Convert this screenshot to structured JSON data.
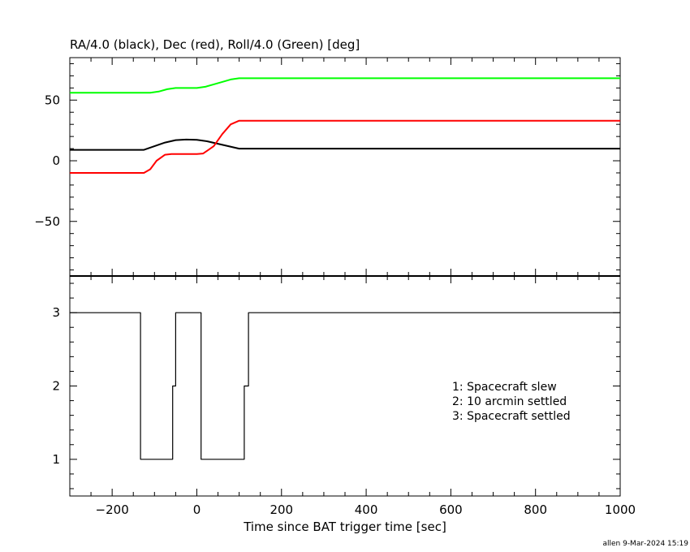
{
  "chart_data": [
    {
      "type": "line",
      "title": "RA/4.0 (black), Dec (red), Roll/4.0 (Green) [deg]",
      "xlim": [
        -300,
        1000
      ],
      "ylim": [
        -95,
        85
      ],
      "yticks": [
        -50,
        0,
        50
      ],
      "ytick_labels": [
        "−50",
        "0",
        "50"
      ],
      "grid": false,
      "series": [
        {
          "color": "#000000",
          "x": [
            -300,
            -125,
            -100,
            -75,
            -50,
            -25,
            0,
            25,
            50,
            75,
            100,
            125,
            200,
            350,
            500,
            700,
            1000
          ],
          "y": [
            9,
            9,
            12,
            15,
            17,
            17.5,
            17.3,
            16,
            14,
            12,
            10,
            10,
            10,
            10,
            10,
            10,
            10
          ]
        },
        {
          "color": "#ff0000",
          "x": [
            -300,
            -125,
            -110,
            -95,
            -75,
            -60,
            0,
            15,
            40,
            60,
            80,
            100,
            125,
            200,
            350,
            500,
            700,
            1000
          ],
          "y": [
            -10,
            -10,
            -7,
            0,
            5,
            5.5,
            5.5,
            6,
            12,
            22,
            30,
            33,
            33,
            33,
            33,
            33,
            33,
            33
          ]
        },
        {
          "color": "#00ff00",
          "x": [
            -300,
            -110,
            -90,
            -70,
            -50,
            0,
            20,
            40,
            60,
            80,
            100,
            110,
            200,
            350,
            500,
            700,
            1000
          ],
          "y": [
            56,
            56,
            57,
            59,
            60,
            60,
            61,
            63,
            65,
            67,
            68,
            68,
            68,
            68,
            68,
            68,
            68
          ]
        }
      ]
    },
    {
      "type": "line",
      "xlabel": "Time since BAT trigger time [sec]",
      "xlim": [
        -300,
        1000
      ],
      "ylim": [
        0.5,
        3.5
      ],
      "yticks": [
        1,
        2,
        3
      ],
      "ytick_labels": [
        "1",
        "2",
        "3"
      ],
      "xticks": [
        -200,
        0,
        200,
        400,
        600,
        800,
        1000
      ],
      "xtick_labels": [
        "−200",
        "0",
        "200",
        "400",
        "600",
        "800",
        "1000"
      ],
      "grid": false,
      "legend_position": "right-middle",
      "legend": [
        "1: Spacecraft slew",
        "2: 10 arcmin settled",
        "3: Spacecraft settled"
      ],
      "series": [
        {
          "color": "#000000",
          "step": true,
          "x": [
            -300,
            -133,
            -133,
            -57,
            -57,
            -50,
            -50,
            10,
            10,
            112,
            112,
            122,
            122,
            1000
          ],
          "y": [
            3,
            3,
            1,
            1,
            2,
            2,
            3,
            3,
            1,
            1,
            2,
            2,
            3,
            3
          ]
        }
      ]
    }
  ],
  "footer": "allen  9‑Mar‑2024 15:19"
}
